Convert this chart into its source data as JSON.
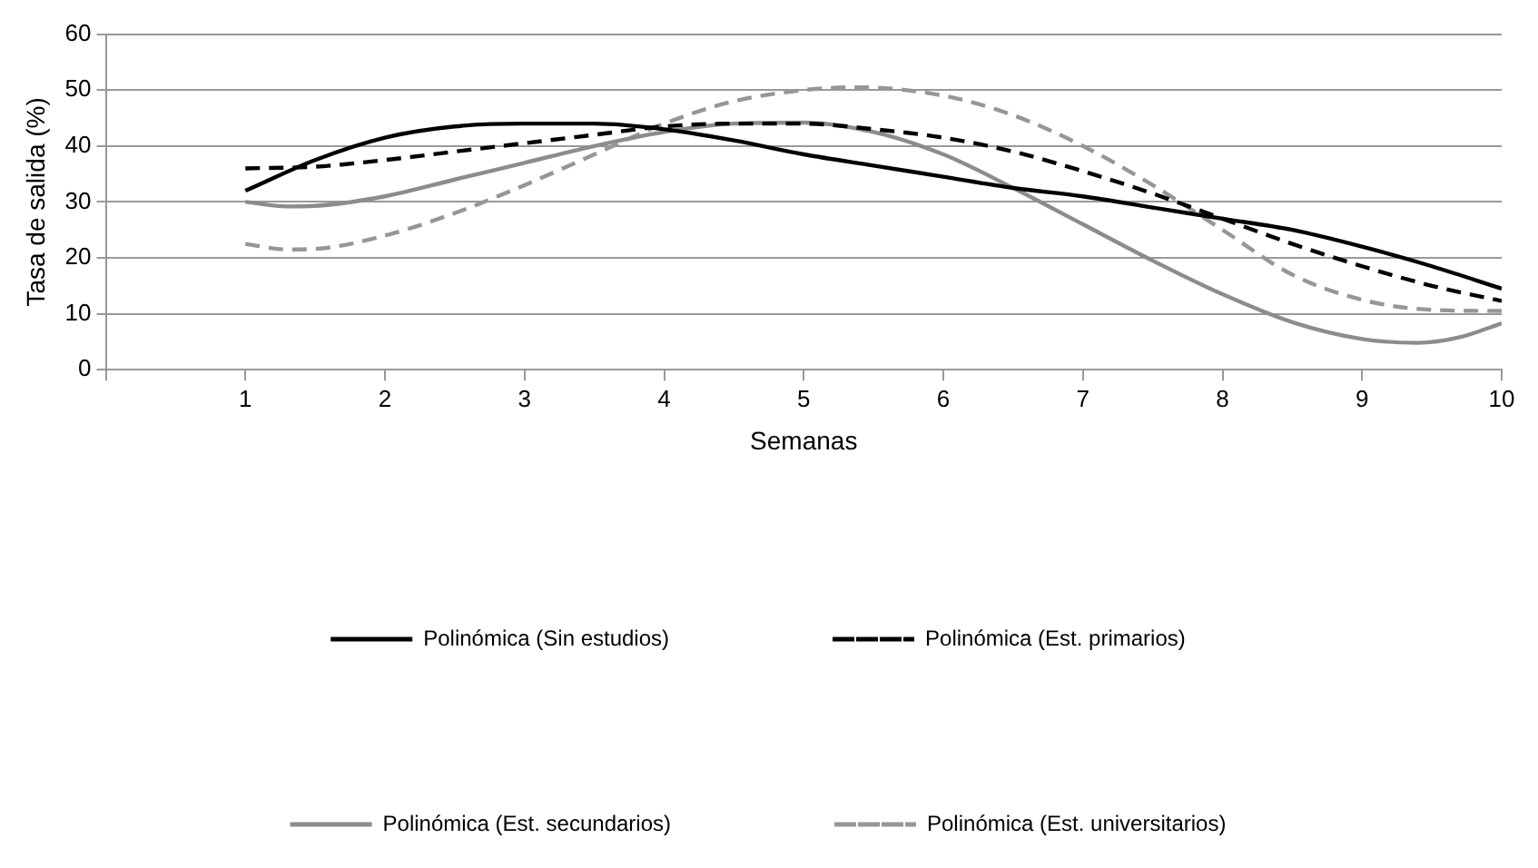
{
  "chart_data": {
    "type": "line",
    "xlabel": "Semanas",
    "ylabel": "Tasa de salida (%)",
    "xlim": [
      0,
      10
    ],
    "xticks": [
      {
        "value": 0,
        "label": null
      },
      1,
      2,
      3,
      4,
      5,
      6,
      7,
      8,
      9,
      10
    ],
    "ylim": [
      0,
      60
    ],
    "yticks": [
      0,
      10,
      20,
      30,
      40,
      50,
      60
    ],
    "grid": "y",
    "legend": "bottom",
    "marker": "none",
    "series": [
      {
        "name": "Polinómica (Sin estudios)",
        "color": "#000000",
        "line_style": "solid",
        "x": [
          1,
          1.5,
          2,
          2.5,
          3,
          3.5,
          4,
          4.5,
          5,
          5.5,
          6,
          6.5,
          7,
          7.5,
          8,
          8.5,
          9,
          9.5,
          10
        ],
        "values": [
          32,
          37.5,
          41.5,
          43.5,
          44,
          44,
          43,
          41,
          38.5,
          36.5,
          34.5,
          32.5,
          31,
          29,
          27,
          25,
          22,
          18.5,
          14.5
        ]
      },
      {
        "name": "Polinómica (Est. primarios)",
        "color": "#000000",
        "line_style": "dashed",
        "x": [
          1,
          1.5,
          2,
          2.5,
          3,
          3.5,
          4,
          4.5,
          5,
          5.5,
          6,
          6.5,
          7,
          7.5,
          8,
          8.5,
          9,
          9.5,
          10
        ],
        "values": [
          36,
          36.3,
          37.5,
          39,
          40.5,
          42,
          43.5,
          44,
          44,
          43,
          41.5,
          39,
          35.5,
          31.5,
          27,
          22.5,
          18.5,
          15,
          12.3
        ]
      },
      {
        "name": "Polinómica (Est. secundarios)",
        "color": "#8c8c8c",
        "line_style": "solid",
        "x": [
          1,
          1.3,
          1.5,
          2,
          2.5,
          3,
          3.5,
          4,
          4.5,
          5,
          5.5,
          6,
          6.5,
          7,
          7.5,
          8,
          8.5,
          9,
          9.4,
          9.7,
          10
        ],
        "values": [
          30,
          29.2,
          29.3,
          31,
          34,
          37,
          40,
          42.5,
          44,
          44.2,
          42.5,
          38.5,
          32.5,
          26,
          19.5,
          13.5,
          8.5,
          5.5,
          4.8,
          5.8,
          8.3
        ]
      },
      {
        "name": "Polinómica (Est. universitarios)",
        "color": "#969696",
        "line_style": "dashed",
        "x": [
          1,
          1.3,
          1.5,
          2,
          2.5,
          3,
          3.5,
          4,
          4.5,
          5,
          5.4,
          6,
          6.5,
          7,
          7.5,
          8,
          8.5,
          9,
          9.5,
          10
        ],
        "values": [
          22.5,
          21.5,
          21.6,
          24,
          28,
          33,
          38.5,
          44,
          48,
          50,
          50.5,
          49,
          45.5,
          40,
          33,
          25,
          17,
          12.5,
          10.7,
          10.5
        ]
      }
    ]
  }
}
